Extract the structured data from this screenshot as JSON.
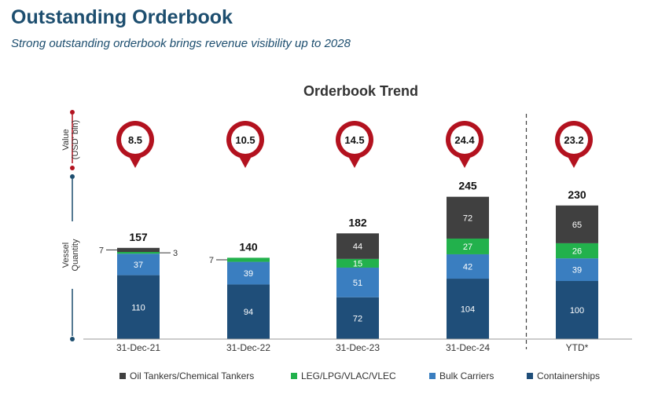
{
  "header": {
    "title": "Outstanding Orderbook",
    "subtitle": "Strong outstanding orderbook brings revenue visibility up to 2028"
  },
  "chart_data": {
    "type": "bar",
    "stacked": true,
    "title": "Orderbook Trend",
    "categories": [
      "31-Dec-21",
      "31-Dec-22",
      "31-Dec-23",
      "31-Dec-24",
      "YTD*"
    ],
    "series": [
      {
        "name": "Containerships",
        "values": [
          110,
          94,
          72,
          104,
          100
        ],
        "color": "#1f4e79"
      },
      {
        "name": "Bulk Carriers",
        "values": [
          37,
          39,
          51,
          42,
          39
        ],
        "color": "#3a7ec0"
      },
      {
        "name": "LEG/LPG/VLAC/VLEC",
        "values": [
          3,
          7,
          15,
          27,
          26
        ],
        "color": "#22b14c"
      },
      {
        "name": "Oil Tankers/Chemical Tankers",
        "values": [
          7,
          0,
          44,
          72,
          65
        ],
        "color": "#404040"
      }
    ],
    "totals": [
      "157",
      "140",
      "182",
      "245",
      "230"
    ],
    "segment_labels": [
      [
        "110",
        "37",
        "3",
        "7"
      ],
      [
        "94",
        "39",
        "7",
        ""
      ],
      [
        "72",
        "51",
        "15",
        "44"
      ],
      [
        "104",
        "42",
        "27",
        "72"
      ],
      [
        "100",
        "39",
        "26",
        "65"
      ]
    ],
    "order_value": {
      "label": "Value (USD' bln)",
      "values": [
        "8.5",
        "10.5",
        "14.5",
        "24.4",
        "23.2"
      ]
    },
    "ylabel": "Vessel Quantity",
    "ylim": [
      0,
      260
    ],
    "legend_position": "bottom",
    "separator_before_category": "YTD*",
    "colors": {
      "pin": "#b3121f",
      "axis_accent": "#1d4e6f",
      "divider": "#404040"
    }
  }
}
